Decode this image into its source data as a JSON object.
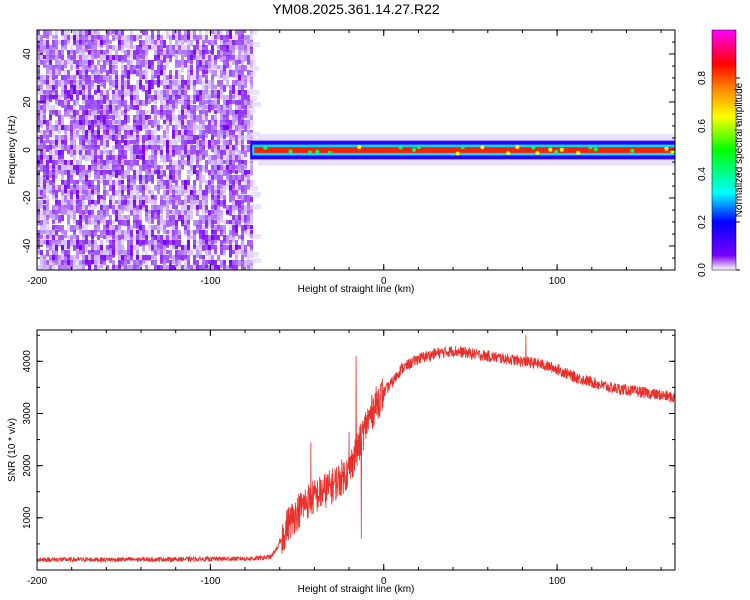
{
  "title": "YM08.2025.361.14.27.R22",
  "chart_data": [
    {
      "type": "heatmap",
      "xlabel": "Height of straight line (km)",
      "ylabel": "Frequency (Hz)",
      "xlim": [
        -200,
        168
      ],
      "ylim": [
        -50,
        50
      ],
      "xticks": [
        -200,
        -100,
        0,
        100
      ],
      "yticks": [
        -40,
        -20,
        0,
        20,
        40
      ],
      "colorbar": {
        "label": "Normalized spectral amplitude",
        "range": [
          0,
          1
        ],
        "ticks": [
          "0.0",
          "0.2",
          "0.4",
          "0.6",
          "0.8"
        ],
        "colors": [
          "#ffffff",
          "#7a00ff",
          "#0000ff",
          "#00ffff",
          "#00ff00",
          "#ffff00",
          "#ff8000",
          "#ff0000",
          "#ff00ff"
        ]
      },
      "regions": [
        {
          "x": [
            -200,
            -77
          ],
          "frequency": [
            -50,
            50
          ],
          "pattern": "broadband noise",
          "amplitude": 0.1
        },
        {
          "x": [
            -77,
            168
          ],
          "frequency_center": 0,
          "half_width": 3,
          "pattern": "narrow line",
          "amplitude": 1.0
        }
      ],
      "grid": false
    },
    {
      "type": "line",
      "xlabel": "Height of straight line (km)",
      "ylabel": "SNR (10 * v/v)",
      "xlim": [
        -200,
        168
      ],
      "ylim": [
        0,
        4600
      ],
      "xticks": [
        -200,
        -100,
        0,
        100
      ],
      "yticks": [
        1000,
        2000,
        3000,
        4000
      ],
      "color": "#e8302c",
      "series": [
        {
          "x": [
            -200,
            -150,
            -100,
            -75,
            -65,
            -60,
            -55,
            -50,
            -45,
            -40,
            -35,
            -30,
            -25,
            -20,
            -18,
            -15,
            -10,
            -5,
            0,
            5,
            10,
            20,
            30,
            40,
            50,
            60,
            70,
            80,
            90,
            100,
            110,
            120,
            130,
            140,
            150,
            160,
            168
          ],
          "y": [
            200,
            200,
            210,
            220,
            250,
            500,
            900,
            1100,
            1300,
            1400,
            1500,
            1600,
            1750,
            1900,
            2100,
            2300,
            2800,
            3150,
            3400,
            3600,
            3850,
            4050,
            4150,
            4200,
            4150,
            4100,
            4050,
            4000,
            3950,
            3850,
            3700,
            3600,
            3500,
            3450,
            3400,
            3350,
            3300
          ],
          "spikes": [
            {
              "x": -60,
              "y": 600
            },
            {
              "x": -42,
              "y": 2450
            },
            {
              "x": -20,
              "y": 2650
            },
            {
              "x": -16,
              "y": 4100
            },
            {
              "x": -13,
              "y": 600
            },
            {
              "x": 82,
              "y": 4500
            }
          ]
        }
      ],
      "grid": false
    }
  ]
}
